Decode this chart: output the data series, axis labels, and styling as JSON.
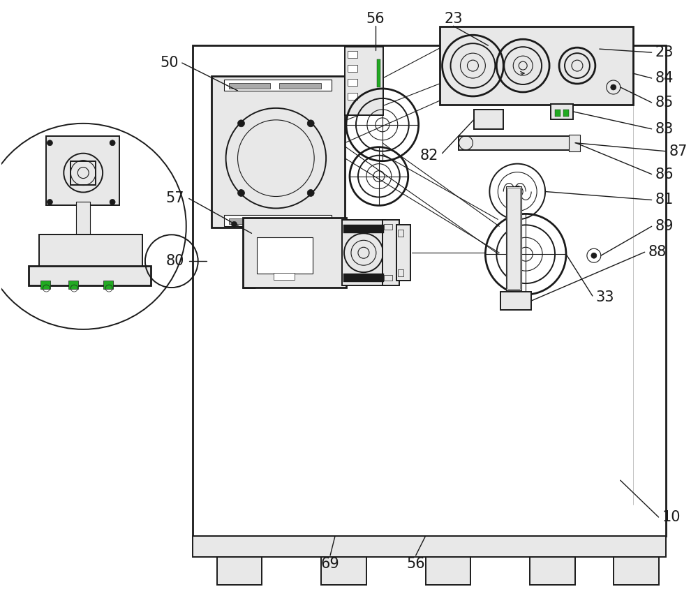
{
  "bg_color": "#ffffff",
  "line_color": "#1a1a1a",
  "light_gray": "#e8e8e8",
  "mid_gray": "#aaaaaa",
  "dark_gray": "#444444",
  "green_accent": "#22aa22",
  "fig_width": 10.0,
  "fig_height": 8.64,
  "lw_main": 2.0,
  "lw_med": 1.4,
  "lw_thin": 0.8,
  "lw_leader": 1.0,
  "label_fs": 15
}
